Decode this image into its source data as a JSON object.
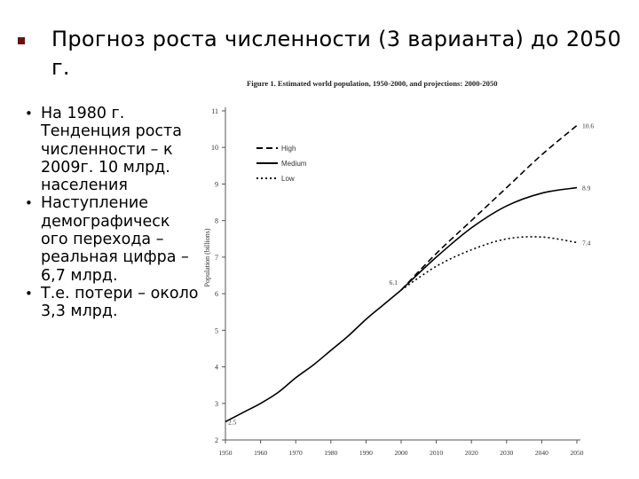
{
  "slide": {
    "title": "Прогноз роста численности (3 варианта) до 2050 г.",
    "bullets": [
      "На 1980 г. Тенденция роста численности – к 2009г. 10 млрд. населения",
      "Наступление демографическ ого перехода – реальная цифра – 6,7 млрд.",
      "Т.е. потери – около 3,3 млрд."
    ],
    "bullet_glyph": "•",
    "title_bullet_color": "#6b1010",
    "background_color": "#5a0a0a"
  },
  "chart_data": {
    "type": "line",
    "title": "Figure 1. Estimated world population, 1950-2000, and projections: 2000-2050",
    "ylabel": "Population (billions)",
    "xlabel": "",
    "xlim": [
      1950,
      2050
    ],
    "ylim": [
      2,
      11
    ],
    "x_ticks": [
      "1950",
      "1960",
      "1970",
      "1980",
      "1990",
      "2000",
      "2010",
      "2020",
      "2030",
      "2040",
      "2050"
    ],
    "y_ticks": [
      "2",
      "3",
      "4",
      "5",
      "6",
      "7",
      "8",
      "9",
      "10",
      "11"
    ],
    "legend_position": "top-left",
    "estimated": {
      "x": [
        1950,
        1955,
        1960,
        1965,
        1970,
        1975,
        1980,
        1985,
        1990,
        1995,
        2000
      ],
      "y": [
        2.5,
        2.75,
        3.0,
        3.3,
        3.7,
        4.05,
        4.45,
        4.85,
        5.3,
        5.7,
        6.1
      ]
    },
    "series": [
      {
        "name": "High",
        "style": "dashed",
        "x": [
          2000,
          2010,
          2020,
          2030,
          2040,
          2050
        ],
        "y": [
          6.1,
          7.1,
          8.0,
          8.9,
          9.8,
          10.6
        ]
      },
      {
        "name": "Medium",
        "style": "solid",
        "x": [
          2000,
          2010,
          2020,
          2030,
          2040,
          2050
        ],
        "y": [
          6.1,
          7.0,
          7.8,
          8.4,
          8.75,
          8.9
        ]
      },
      {
        "name": "Low",
        "style": "dotted",
        "x": [
          2000,
          2010,
          2020,
          2030,
          2040,
          2050
        ],
        "y": [
          6.1,
          6.75,
          7.2,
          7.5,
          7.55,
          7.4
        ]
      }
    ],
    "annotations": [
      {
        "text": "2.5",
        "x": 1950,
        "y": 2.5
      },
      {
        "text": "6.1",
        "x": 2000,
        "y": 6.1
      },
      {
        "text": "10.6",
        "x": 2050,
        "y": 10.6
      },
      {
        "text": "8.9",
        "x": 2050,
        "y": 8.9
      },
      {
        "text": "7.4",
        "x": 2050,
        "y": 7.4
      }
    ],
    "line_color": "#000000"
  }
}
